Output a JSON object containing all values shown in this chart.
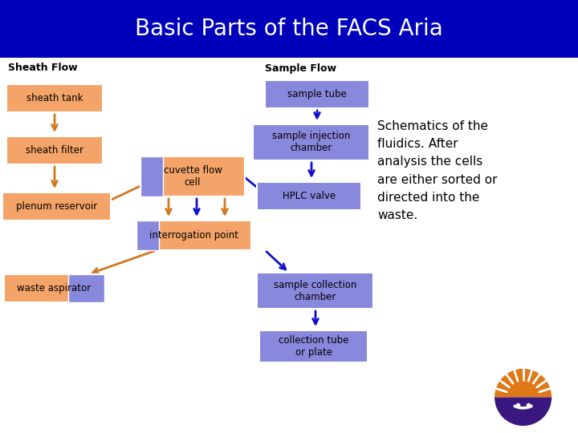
{
  "title": "Basic Parts of the FACS Aria",
  "title_bg": "#0000BB",
  "title_color": "#FFFFFF",
  "title_fontsize": 20,
  "bg_color": "#FFFFFF",
  "orange_fill": "#F4A468",
  "orange_arrow": "#D07820",
  "blue_fill": "#8888DD",
  "blue_arrow": "#1010CC",
  "sheath_label": "Sheath Flow",
  "sample_label": "Sample Flow",
  "annotation": "Schematics of the\nfluidics. After\nanalysis the cells\nare either sorted or\ndirected into the\nwaste."
}
